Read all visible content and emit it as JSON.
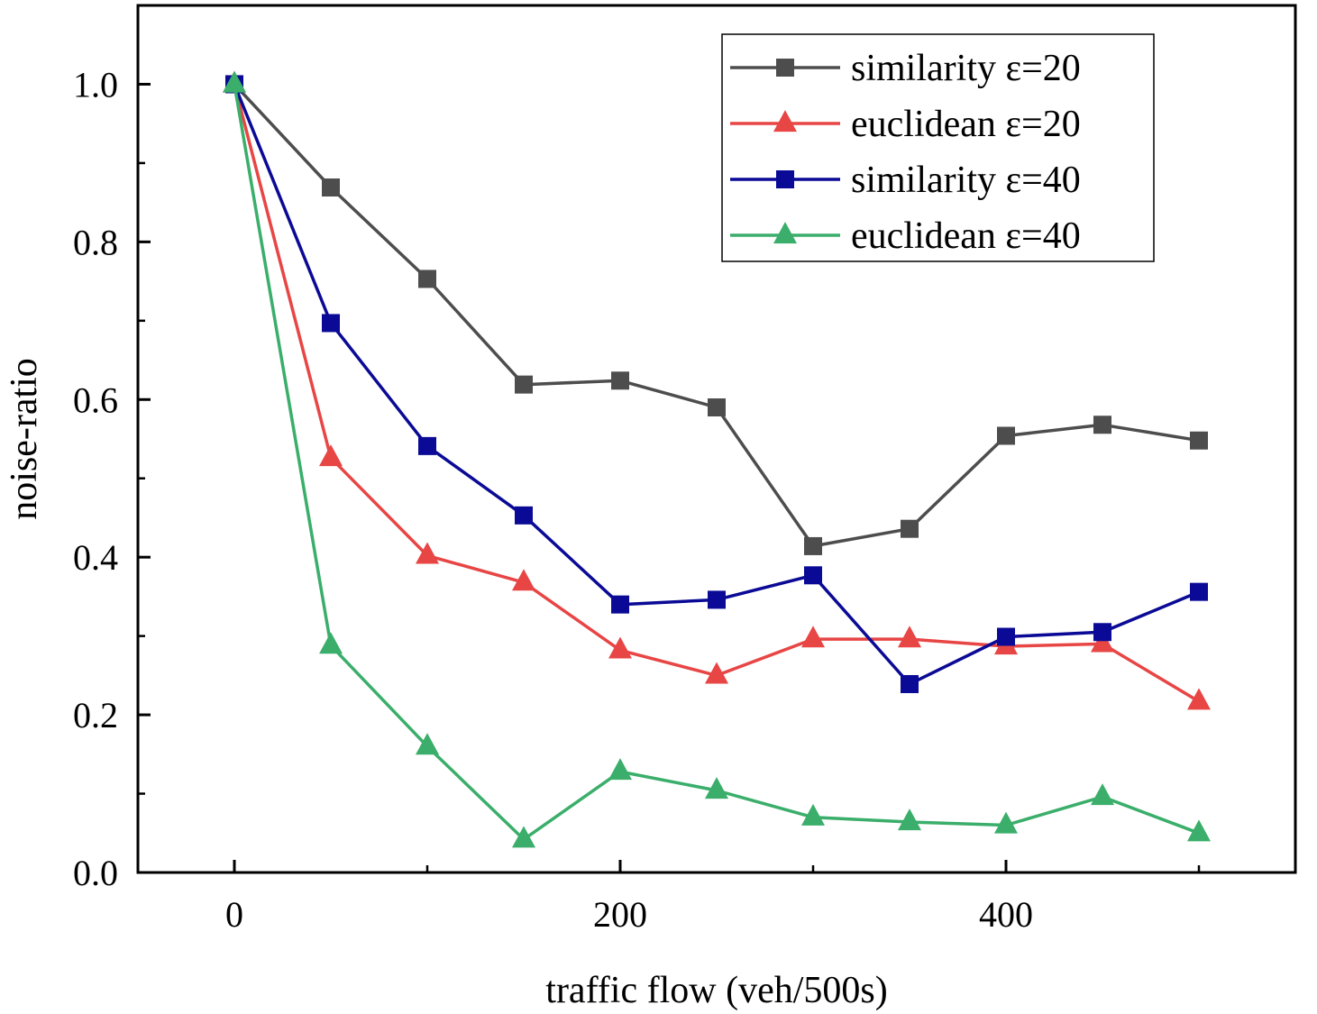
{
  "chart_data": {
    "type": "line",
    "title": "",
    "xlabel": "traffic flow (veh/500s)",
    "ylabel": "noise-ratio",
    "xlim": [
      -50,
      550
    ],
    "ylim": [
      0,
      1.1
    ],
    "xticks": [
      0,
      200,
      400
    ],
    "xtick_labels": [
      "0",
      "200",
      "400"
    ],
    "yticks": [
      0,
      0.2,
      0.4,
      0.6,
      0.8,
      1.0
    ],
    "ytick_labels": [
      "0.0",
      "0.2",
      "0.4",
      "0.6",
      "0.8",
      "1.0"
    ],
    "x": [
      0,
      50,
      100,
      150,
      200,
      250,
      300,
      350,
      400,
      450,
      500
    ],
    "legend_position": "top-right",
    "series": [
      {
        "name": "similarity ε=20",
        "color": "#4d4d4d",
        "marker": "square",
        "values": [
          1.0,
          0.869,
          0.753,
          0.619,
          0.624,
          0.59,
          0.414,
          0.436,
          0.554,
          0.568,
          0.548
        ]
      },
      {
        "name": "euclidean ε=20",
        "color": "#e84545",
        "marker": "triangle",
        "values": [
          1.0,
          0.526,
          0.402,
          0.368,
          0.282,
          0.25,
          0.296,
          0.296,
          0.287,
          0.29,
          0.217
        ]
      },
      {
        "name": "similarity ε=40",
        "color": "#0a0a96",
        "marker": "square",
        "values": [
          1.0,
          0.697,
          0.541,
          0.453,
          0.34,
          0.346,
          0.377,
          0.239,
          0.299,
          0.305,
          0.356
        ]
      },
      {
        "name": "euclidean ε=40",
        "color": "#3aae6a",
        "marker": "triangle",
        "values": [
          1.0,
          0.288,
          0.16,
          0.042,
          0.128,
          0.104,
          0.07,
          0.064,
          0.06,
          0.096,
          0.05
        ]
      }
    ]
  }
}
